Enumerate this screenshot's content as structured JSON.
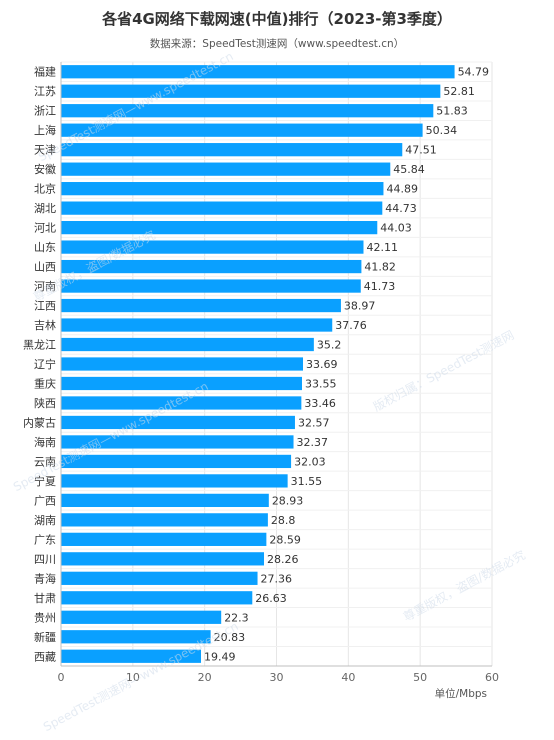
{
  "chart_data": {
    "type": "bar",
    "orientation": "horizontal",
    "title": "各省4G网络下载网速(中值)排行（2023-第3季度）",
    "subtitle": "数据来源：SpeedTest测速网（www.speedtest.cn）",
    "categories": [
      "福建",
      "江苏",
      "浙江",
      "上海",
      "天津",
      "安徽",
      "北京",
      "湖北",
      "河北",
      "山东",
      "山西",
      "河南",
      "江西",
      "吉林",
      "黑龙江",
      "辽宁",
      "重庆",
      "陕西",
      "内蒙古",
      "海南",
      "云南",
      "宁夏",
      "广西",
      "湖南",
      "广东",
      "四川",
      "青海",
      "甘肃",
      "贵州",
      "新疆",
      "西藏"
    ],
    "values": [
      54.79,
      52.81,
      51.83,
      50.34,
      47.51,
      45.84,
      44.89,
      44.73,
      44.03,
      42.11,
      41.82,
      41.73,
      38.97,
      37.76,
      35.2,
      33.69,
      33.55,
      33.46,
      32.57,
      32.37,
      32.03,
      31.55,
      28.93,
      28.8,
      28.59,
      28.26,
      27.36,
      26.63,
      22.3,
      20.83,
      19.49
    ],
    "value_labels": [
      "54.79",
      "52.81",
      "51.83",
      "50.34",
      "47.51",
      "45.84",
      "44.89",
      "44.73",
      "44.03",
      "42.11",
      "41.82",
      "41.73",
      "38.97",
      "37.76",
      "35.2",
      "33.69",
      "33.55",
      "33.46",
      "32.57",
      "32.37",
      "32.03",
      "31.55",
      "28.93",
      "28.8",
      "28.59",
      "28.26",
      "27.36",
      "26.63",
      "22.3",
      "20.83",
      "19.49"
    ],
    "xlim": [
      0,
      60
    ],
    "xticks": [
      0,
      10,
      20,
      30,
      40,
      50,
      60
    ],
    "xlabel": "单位/Mbps",
    "grid": true,
    "bar_color": "#0aa0ff",
    "grid_color": "#e6e6e6"
  },
  "watermark": {
    "text_a": "SpeedTest测速网—www.speedtest.cn",
    "text_b": "版权归属：SpeedTest测速网",
    "text_c": "尊重版权，盗图/数据必究"
  }
}
